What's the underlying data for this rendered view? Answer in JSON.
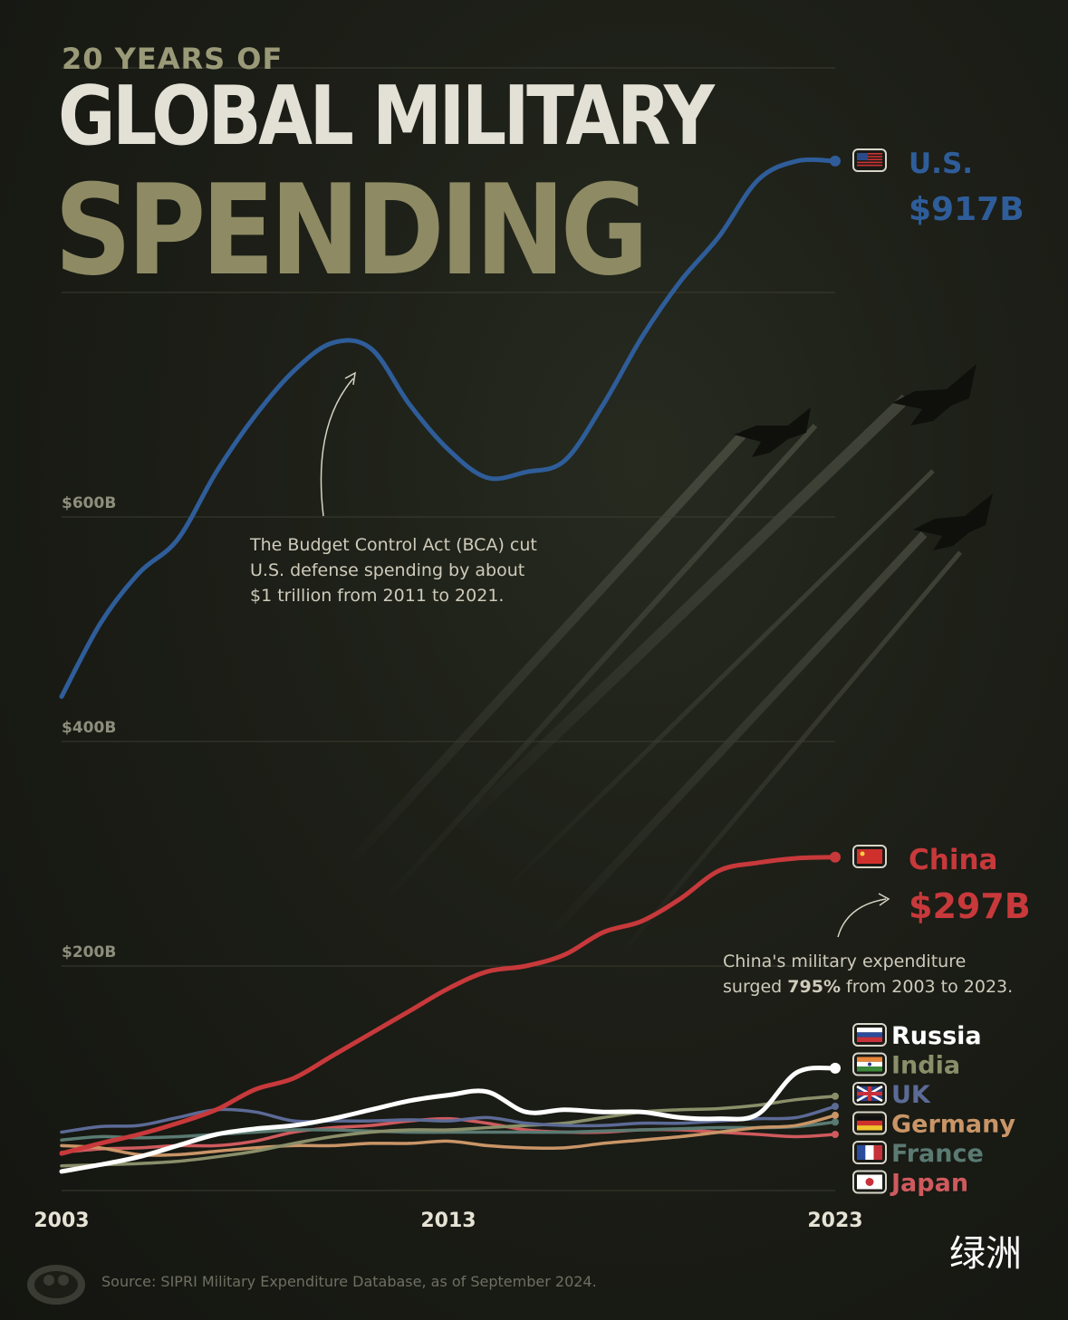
{
  "title": {
    "line1": "20 YEARS OF",
    "line2": "GLOBAL MILITARY",
    "line3": "SPENDING"
  },
  "source": "Source: SIPRI Military Expenditure Database, as of September 2024.",
  "watermark": "绿洲",
  "colors": {
    "us": "#2f5d9a",
    "china": "#c8393b",
    "russia": "#ffffff",
    "india": "#8a8f6a",
    "uk": "#5c6a96",
    "germany": "#c99567",
    "france": "#5a7a72",
    "japan": "#cf5a5e",
    "grid": "#3b3c31",
    "axis_text": "#8e8e7c"
  },
  "chart_data": {
    "type": "line",
    "x": [
      2003,
      2004,
      2005,
      2006,
      2007,
      2008,
      2009,
      2010,
      2011,
      2012,
      2013,
      2014,
      2015,
      2016,
      2017,
      2018,
      2019,
      2020,
      2021,
      2022,
      2023
    ],
    "xticks": [
      "2003",
      "2013",
      "2023"
    ],
    "yticks": [
      "$200B",
      "$400B",
      "$600B"
    ],
    "ylim": [
      0,
      1000
    ],
    "grid": true,
    "series": [
      {
        "name": "U.S.",
        "label": "U.S.",
        "value_label": "$917B",
        "values": [
          440,
          505,
          550,
          580,
          640,
          690,
          730,
          755,
          750,
          700,
          660,
          635,
          640,
          650,
          700,
          760,
          810,
          850,
          900,
          917,
          917
        ]
      },
      {
        "name": "China",
        "label": "China",
        "value_label": "$297B",
        "values": [
          33,
          42,
          50,
          60,
          72,
          90,
          100,
          120,
          140,
          160,
          180,
          195,
          200,
          210,
          230,
          240,
          260,
          285,
          292,
          296,
          297
        ]
      },
      {
        "name": "Russia",
        "label": "Russia",
        "values": [
          17,
          23,
          30,
          40,
          50,
          55,
          58,
          64,
          72,
          80,
          85,
          88,
          70,
          72,
          70,
          70,
          65,
          64,
          68,
          105,
          109
        ]
      },
      {
        "name": "India",
        "label": "India",
        "values": [
          22,
          23,
          24,
          26,
          30,
          35,
          42,
          48,
          52,
          54,
          54,
          56,
          58,
          60,
          65,
          70,
          72,
          73,
          76,
          81,
          84
        ]
      },
      {
        "name": "UK",
        "label": "UK",
        "values": [
          52,
          57,
          58,
          65,
          72,
          70,
          62,
          62,
          62,
          63,
          62,
          65,
          60,
          58,
          58,
          60,
          60,
          62,
          64,
          65,
          75
        ]
      },
      {
        "name": "Germany",
        "label": "Germany",
        "values": [
          40,
          38,
          32,
          32,
          35,
          38,
          40,
          40,
          42,
          42,
          44,
          40,
          38,
          38,
          42,
          45,
          48,
          52,
          56,
          58,
          67
        ]
      },
      {
        "name": "France",
        "label": "France",
        "values": [
          45,
          48,
          47,
          48,
          50,
          52,
          54,
          54,
          53,
          52,
          52,
          52,
          52,
          52,
          53,
          54,
          55,
          56,
          56,
          57,
          61
        ]
      },
      {
        "name": "Japan",
        "label": "Japan",
        "values": [
          34,
          37,
          38,
          40,
          40,
          44,
          52,
          56,
          58,
          62,
          64,
          60,
          54,
          52,
          52,
          54,
          54,
          52,
          50,
          48,
          50
        ]
      }
    ],
    "annotations": [
      "The Budget Control Act (BCA) cut U.S. defense spending by about $1 trillion from 2011 to 2021.",
      "China's military expenditure surged 795% from 2003 to 2023."
    ]
  },
  "annotation_us": {
    "line1": "The Budget Control Act (BCA) cut",
    "line2": "U.S. defense spending by about",
    "line3": "$1 trillion from 2011 to 2021."
  },
  "annotation_china": {
    "line1": "China's military expenditure",
    "line2_pre": "surged ",
    "line2_bold": "795%",
    "line2_post": " from 2003 to 2023."
  }
}
